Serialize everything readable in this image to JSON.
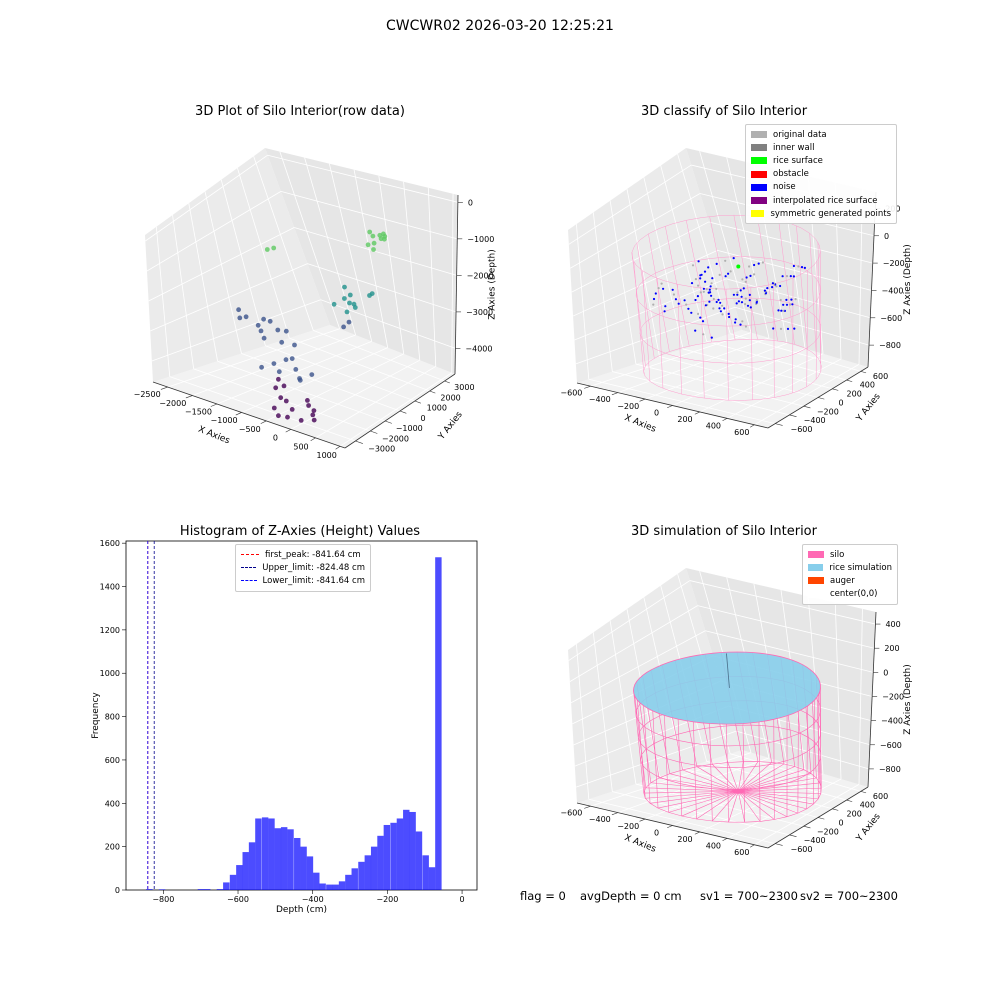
{
  "figure": {
    "suptitle": "CWCWR02 2026-03-20 12:25:21",
    "status": {
      "flag": "flag = 0",
      "avg_depth": "avgDepth = 0 cm",
      "sv1": "sv1 = 700~2300",
      "sv2": "sv2 = 700~2300"
    }
  },
  "chart_data": [
    {
      "type": "scatter",
      "projection": "3d",
      "title": "3D Plot of Silo Interior(row data)",
      "xlabel": "X Axies",
      "ylabel": "Y Axies",
      "zlabel": "Z Axies (Depth)",
      "xlim": [
        -2800,
        1100
      ],
      "ylim": [
        -3700,
        3700
      ],
      "zlim": [
        -4700,
        200
      ],
      "xticks": [
        -2500,
        -2000,
        -1500,
        -1000,
        -500,
        0,
        500,
        1000
      ],
      "yticks": [
        -3000,
        -2000,
        -1000,
        0,
        1000,
        2000,
        3000
      ],
      "zticks": [
        -4000,
        -3000,
        -2000,
        -1000,
        0
      ],
      "colormap": [
        "#440154",
        "#3b528b",
        "#21918c",
        "#5ec962",
        "#fde725"
      ],
      "grid": true,
      "series": [
        {
          "points": [
            [
              -300,
              2400,
              -1000
            ],
            [
              -200,
              2600,
              -1100
            ],
            [
              -350,
              2200,
              -1200
            ],
            [
              -100,
              2500,
              -900
            ],
            [
              -250,
              2300,
              -1150
            ],
            [
              -150,
              2700,
              -1050
            ],
            [
              -400,
              2500,
              -950
            ],
            [
              -200,
              2100,
              -1250
            ],
            [
              -50,
              2400,
              -1000
            ],
            [
              -300,
              2800,
              -1100
            ],
            [
              -1500,
              -500,
              -900
            ],
            [
              -1400,
              -400,
              -850
            ]
          ]
        },
        {
          "points": [
            [
              -600,
              1500,
              -2500
            ],
            [
              -400,
              1200,
              -2600
            ],
            [
              -200,
              1800,
              -2400
            ],
            [
              -800,
              1600,
              -2700
            ],
            [
              -500,
              1000,
              -2800
            ],
            [
              -300,
              600,
              -2900
            ],
            [
              -700,
              800,
              -2600
            ],
            [
              -100,
              1400,
              -2300
            ],
            [
              -900,
              1900,
              -2500
            ],
            [
              -350,
              400,
              -3000
            ],
            [
              -550,
              1300,
              -2650
            ],
            [
              -250,
              900,
              -2550
            ]
          ]
        },
        {
          "points": [
            [
              -2300,
              -600,
              -3000
            ],
            [
              -2100,
              -700,
              -3100
            ],
            [
              -1900,
              -300,
              -3200
            ],
            [
              -1700,
              -900,
              -3300
            ],
            [
              -2000,
              -400,
              -3400
            ],
            [
              -1500,
              -500,
              -3300
            ],
            [
              -1300,
              -800,
              -3500
            ],
            [
              -1800,
              -200,
              -3250
            ],
            [
              -1600,
              -1000,
              -3450
            ],
            [
              -1100,
              -600,
              -3550
            ],
            [
              -2200,
              -800,
              -3150
            ],
            [
              -1400,
              -300,
              -3350
            ]
          ]
        },
        {
          "points": [
            [
              -1200,
              -1500,
              -3900
            ],
            [
              -1000,
              -1700,
              -4000
            ],
            [
              -800,
              -1300,
              -3950
            ],
            [
              -900,
              -2000,
              -4100
            ],
            [
              -600,
              -1600,
              -4050
            ],
            [
              -1100,
              -1100,
              -3850
            ],
            [
              -700,
              -2200,
              -4150
            ],
            [
              -500,
              -1800,
              -4000
            ],
            [
              -1300,
              -1900,
              -3950
            ],
            [
              -400,
              -1400,
              -3900
            ],
            [
              -800,
              -2400,
              -4200
            ],
            [
              -1000,
              -1000,
              -3800
            ]
          ]
        },
        {
          "points": [
            [
              -500,
              -2600,
              -4400
            ],
            [
              -300,
              -2800,
              -4500
            ],
            [
              -100,
              -2400,
              -4400
            ],
            [
              -600,
              -3000,
              -4550
            ],
            [
              0,
              -3100,
              -4600
            ],
            [
              -200,
              -2200,
              -4350
            ],
            [
              100,
              -2700,
              -4500
            ],
            [
              -400,
              -3300,
              -4600
            ],
            [
              200,
              -2900,
              -4550
            ],
            [
              -700,
              -2400,
              -4450
            ],
            [
              -250,
              -3200,
              -4600
            ],
            [
              50,
              -2500,
              -4450
            ]
          ]
        }
      ]
    },
    {
      "type": "scatter",
      "projection": "3d",
      "title": "3D classify of Silo Interior",
      "xlabel": "X Axies",
      "ylabel": "Y Axies",
      "zlabel": "Z Axies (Depth)",
      "xlim": [
        -700,
        700
      ],
      "ylim": [
        -700,
        700
      ],
      "zlim": [
        -960,
        320
      ],
      "xticks": [
        -600,
        -400,
        -200,
        0,
        200,
        400,
        600
      ],
      "yticks": [
        -600,
        -400,
        -200,
        0,
        200,
        400,
        600
      ],
      "zticks": [
        -800,
        -600,
        -400,
        -200,
        0,
        200
      ],
      "silo_radius": 600,
      "silo_bottom": -900,
      "silo_top": 0,
      "grid": true,
      "legend": {
        "position": "top-right",
        "items": [
          {
            "label": "original data",
            "color": "#b0b0b0"
          },
          {
            "label": "inner wall",
            "color": "#808080"
          },
          {
            "label": "rice surface",
            "color": "#00ff00"
          },
          {
            "label": "obstacle",
            "color": "#ff0000"
          },
          {
            "label": "noise",
            "color": "#0000ff"
          },
          {
            "label": "interpolated rice surface",
            "color": "#800080"
          },
          {
            "label": "symmetric generated points",
            "color": "#ffff00"
          }
        ]
      }
    },
    {
      "type": "bar",
      "title": "Histogram of Z-Axies (Height) Values",
      "xlabel": "Depth (cm)",
      "ylabel": "Frequency",
      "xlim": [
        -900,
        40
      ],
      "ylim": [
        0,
        1610
      ],
      "xticks": [
        -800,
        -600,
        -400,
        -200,
        0
      ],
      "yticks": [
        0,
        200,
        400,
        600,
        800,
        1000,
        1200,
        1400,
        1600
      ],
      "bin_width": 17.2,
      "bins_start": [
        -846,
        -829,
        -812,
        -794,
        -777,
        -760,
        -743,
        -726,
        -708,
        -691,
        -674,
        -657,
        -640,
        -622,
        -605,
        -588,
        -571,
        -554,
        -536,
        -519,
        -502,
        -485,
        -468,
        -450,
        -433,
        -416,
        -399,
        -382,
        -364,
        -347,
        -330,
        -313,
        -296,
        -278,
        -261,
        -244,
        -227,
        -210,
        -192,
        -175,
        -158,
        -141,
        -124,
        -106,
        -89,
        -72,
        -55,
        -38,
        -20,
        -3
      ],
      "values": [
        4,
        0,
        3,
        0,
        0,
        0,
        0,
        0,
        4,
        4,
        0,
        4,
        35,
        70,
        115,
        175,
        220,
        330,
        335,
        330,
        285,
        290,
        280,
        240,
        200,
        155,
        80,
        30,
        25,
        25,
        40,
        70,
        100,
        130,
        160,
        200,
        250,
        300,
        310,
        330,
        370,
        360,
        270,
        160,
        105,
        1535,
        0,
        0,
        0,
        0
      ],
      "vlines": [
        {
          "x": -841.64,
          "color": "#ff0000",
          "label": "first_peak: -841.64 cm"
        },
        {
          "x": -824.48,
          "color": "#00008b",
          "label": "Upper_limit: -824.48 cm"
        },
        {
          "x": -841.64,
          "color": "#0000ff",
          "label": "Lower_limit: -841.64 cm"
        }
      ],
      "legend": {
        "position": "top-center"
      }
    },
    {
      "type": "surface",
      "projection": "3d",
      "title": "3D simulation of Silo Interior",
      "xlabel": "X Axies",
      "ylabel": "Y Axies",
      "zlabel": "Z Axies (Depth)",
      "xlim": [
        -700,
        700
      ],
      "ylim": [
        -700,
        700
      ],
      "zlim": [
        -950,
        500
      ],
      "xticks": [
        -600,
        -400,
        -200,
        0,
        200,
        400,
        600
      ],
      "yticks": [
        -600,
        -400,
        -200,
        0,
        200,
        400,
        600
      ],
      "zticks": [
        -800,
        -600,
        -400,
        -200,
        0,
        200,
        400
      ],
      "silo_radius": 600,
      "silo_bottom": -900,
      "silo_top": 0,
      "rice_level": 0,
      "grid": true,
      "legend": {
        "position": "top-right",
        "items": [
          {
            "label": "silo",
            "color": "#ff69b4"
          },
          {
            "label": "rice simulation",
            "color": "#87ceeb"
          },
          {
            "label": "auger",
            "color": "#ff4500"
          },
          {
            "label": "center(0,0)",
            "color": "#ffffff"
          }
        ]
      }
    }
  ]
}
